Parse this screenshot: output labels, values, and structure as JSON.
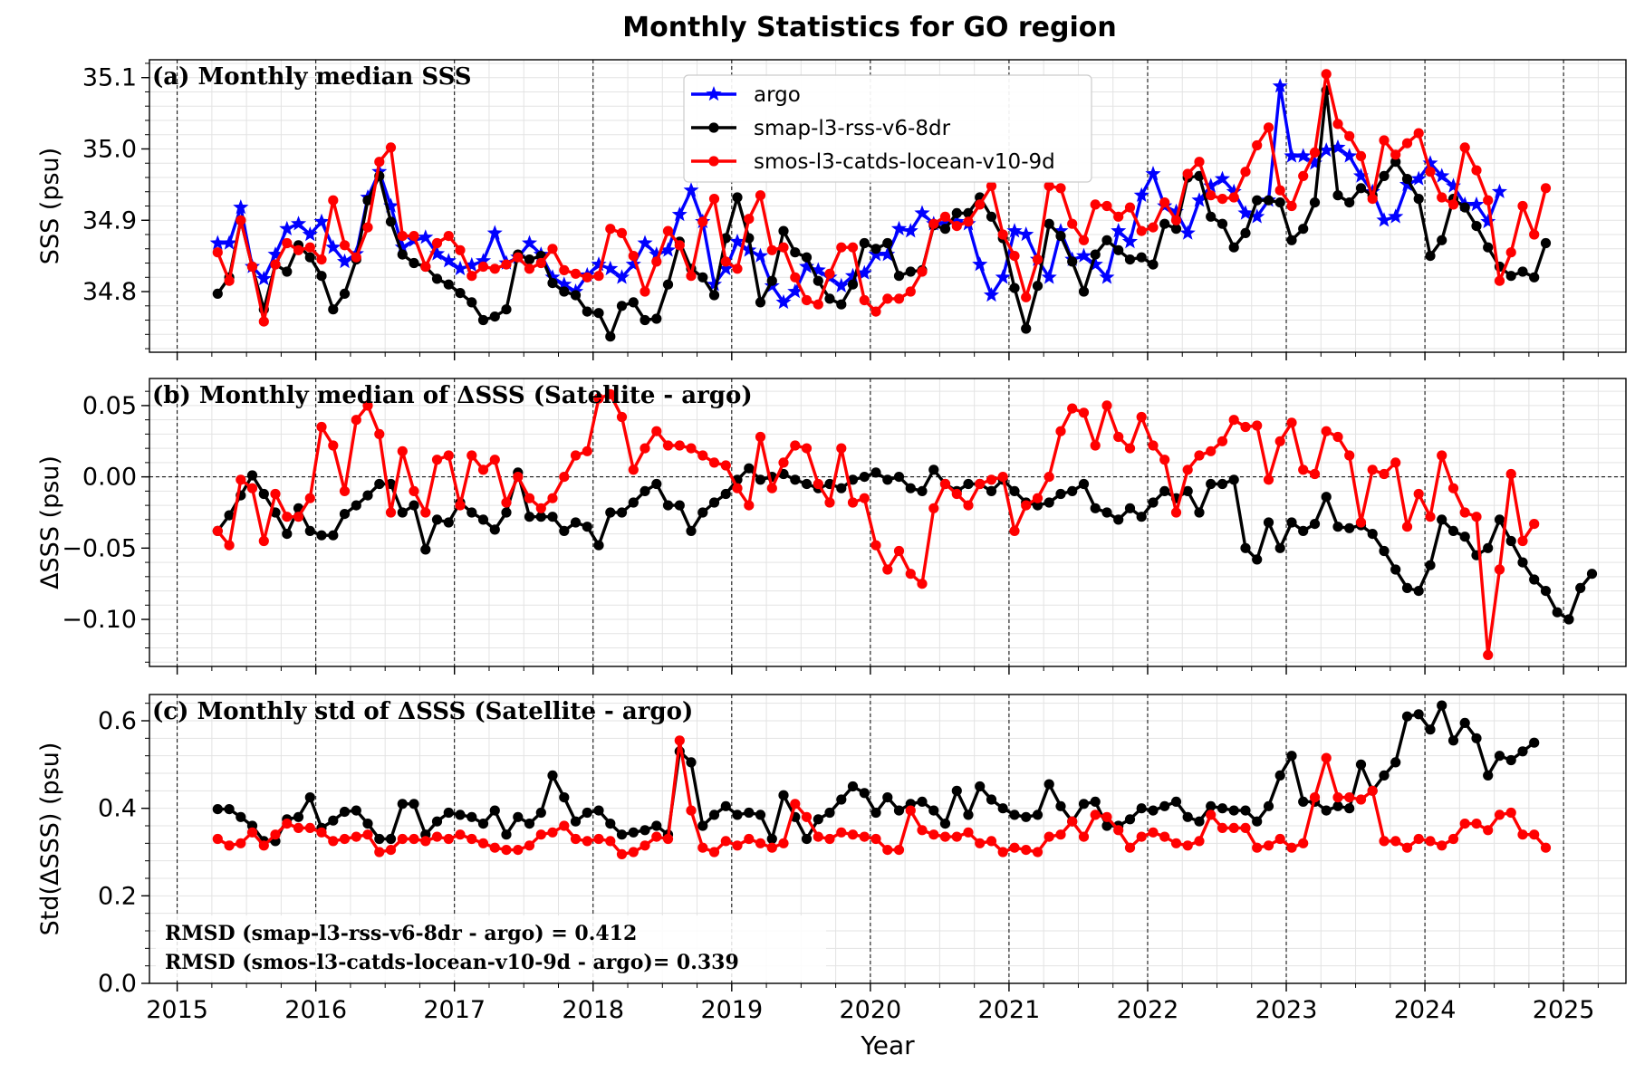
{
  "figure": {
    "title": "Monthly Statistics for GO region"
  },
  "colors": {
    "argo": "#0000ff",
    "smap": "#000000",
    "smos": "#ff0000"
  },
  "legend": {
    "placement": "upper-center of panel (a)",
    "entries": [
      {
        "label": "argo",
        "marker": "star",
        "color": "#0000ff"
      },
      {
        "label": "smap-l3-rss-v6-8dr",
        "marker": "circle",
        "color": "#000000"
      },
      {
        "label": "smos-l3-catds-locean-v10-9d",
        "marker": "circle",
        "color": "#ff0000"
      }
    ]
  },
  "chart_data": [
    {
      "type": "line",
      "panel": "a",
      "title": "(a) Monthly median SSS",
      "xlabel": "",
      "ylabel": "SSS (psu)",
      "x_units": "decimal year",
      "xlim": [
        2014.8,
        2025.45
      ],
      "ylim": [
        34.715,
        35.125
      ],
      "yticks": [
        34.8,
        34.9,
        35.0,
        35.1
      ],
      "ytick_labels": [
        "34.8",
        "34.9",
        "35.0",
        "35.1"
      ],
      "grid": true,
      "x_start": 2015.292,
      "x_step": 0.0833,
      "series": [
        {
          "name": "argo",
          "color": "#0000ff",
          "marker": "star",
          "values": [
            34.868,
            34.868,
            34.918,
            34.835,
            34.818,
            34.852,
            34.888,
            34.895,
            34.88,
            34.898,
            34.862,
            34.842,
            34.853,
            34.932,
            34.968,
            34.92,
            34.862,
            34.872,
            34.876,
            34.853,
            34.843,
            34.832,
            34.837,
            34.843,
            34.882,
            34.84,
            34.848,
            34.868,
            34.852,
            34.82,
            34.81,
            34.8,
            34.823,
            34.838,
            34.832,
            34.82,
            34.838,
            34.868,
            34.852,
            34.858,
            34.908,
            34.942,
            34.898,
            34.81,
            34.832,
            34.87,
            34.858,
            34.85,
            34.808,
            34.785,
            34.8,
            34.835,
            34.83,
            34.82,
            34.808,
            34.822,
            34.826,
            34.852,
            34.852,
            34.888,
            34.885,
            34.91,
            34.895,
            34.895,
            34.898,
            34.895,
            34.838,
            34.795,
            34.82,
            34.885,
            34.88,
            34.845,
            34.82,
            34.885,
            34.845,
            34.85,
            34.838,
            34.82,
            34.885,
            34.87,
            34.935,
            34.965,
            34.92,
            34.912,
            34.882,
            34.928,
            34.948,
            34.958,
            34.94,
            34.91,
            34.905,
            34.928,
            35.088,
            34.99,
            34.99,
            34.98,
            34.998,
            35.002,
            34.99,
            34.962,
            34.94,
            34.9,
            34.905,
            34.95,
            34.958,
            34.98,
            34.962,
            34.948,
            34.922,
            34.922,
            34.898,
            34.94
          ]
        },
        {
          "name": "smap-l3-rss-v6-8dr",
          "color": "#000000",
          "marker": "circle",
          "values": [
            34.797,
            34.82,
            34.9,
            34.835,
            34.775,
            34.838,
            34.828,
            34.865,
            34.848,
            34.822,
            34.775,
            34.797,
            34.845,
            34.928,
            34.962,
            34.898,
            34.852,
            34.84,
            34.835,
            34.818,
            34.81,
            34.798,
            34.785,
            34.76,
            34.765,
            34.775,
            34.852,
            34.845,
            34.85,
            34.812,
            34.8,
            34.795,
            34.772,
            34.77,
            34.737,
            34.78,
            34.785,
            34.76,
            34.762,
            34.81,
            34.87,
            34.832,
            34.82,
            34.795,
            34.875,
            34.932,
            34.875,
            34.785,
            34.815,
            34.885,
            34.855,
            34.848,
            34.815,
            34.79,
            34.782,
            34.81,
            34.868,
            34.86,
            34.868,
            34.822,
            34.828,
            34.83,
            34.893,
            34.888,
            34.91,
            34.91,
            34.932,
            34.905,
            34.875,
            34.805,
            34.748,
            34.808,
            34.895,
            34.878,
            34.842,
            34.8,
            34.852,
            34.872,
            34.858,
            34.845,
            34.848,
            34.838,
            34.895,
            34.888,
            34.96,
            34.962,
            34.905,
            34.895,
            34.862,
            34.882,
            34.928,
            34.928,
            34.925,
            34.872,
            34.888,
            34.925,
            35.082,
            34.935,
            34.925,
            34.945,
            34.935,
            34.962,
            34.982,
            34.958,
            34.93,
            34.85,
            34.872,
            34.93,
            34.918,
            34.892,
            34.862,
            34.835,
            34.822,
            34.828,
            34.82,
            34.868
          ]
        },
        {
          "name": "smos-l3-catds-locean-v10-9d",
          "color": "#ff0000",
          "marker": "circle",
          "values": [
            34.855,
            34.815,
            34.9,
            34.835,
            34.758,
            34.838,
            34.868,
            34.858,
            34.862,
            34.845,
            34.928,
            34.865,
            34.848,
            34.89,
            34.982,
            35.002,
            34.878,
            34.878,
            34.835,
            34.868,
            34.878,
            34.858,
            34.822,
            34.835,
            34.832,
            34.838,
            34.848,
            34.832,
            34.84,
            34.86,
            34.83,
            34.825,
            34.82,
            34.822,
            34.888,
            34.882,
            34.85,
            34.8,
            34.842,
            34.885,
            34.865,
            34.822,
            34.898,
            34.93,
            34.842,
            34.832,
            34.902,
            34.935,
            34.858,
            34.862,
            34.82,
            34.788,
            34.782,
            34.825,
            34.862,
            34.862,
            34.788,
            34.772,
            34.79,
            34.79,
            34.8,
            34.828,
            34.895,
            34.905,
            34.892,
            34.898,
            34.922,
            34.948,
            34.88,
            34.85,
            34.792,
            34.845,
            34.948,
            34.945,
            34.895,
            34.872,
            34.922,
            34.92,
            34.905,
            34.918,
            34.885,
            34.89,
            34.925,
            34.9,
            34.965,
            34.982,
            34.935,
            34.93,
            34.932,
            34.968,
            35.005,
            35.03,
            34.942,
            34.92,
            34.962,
            34.995,
            35.105,
            35.035,
            35.018,
            34.99,
            34.93,
            35.012,
            34.992,
            35.008,
            35.022,
            34.968,
            34.932,
            34.922,
            35.002,
            34.97,
            34.928,
            34.815,
            34.855,
            34.92,
            34.88,
            34.945
          ]
        }
      ]
    },
    {
      "type": "line",
      "panel": "b",
      "title": "(b) Monthly median of ΔSSS (Satellite - argo)",
      "xlabel": "",
      "ylabel": "ΔSSS (psu)",
      "x_units": "decimal year",
      "xlim": [
        2014.8,
        2025.45
      ],
      "ylim": [
        -0.133,
        0.069
      ],
      "yticks": [
        0.05,
        0.0,
        -0.05,
        -0.1
      ],
      "ytick_labels": [
        "0.05",
        "0.00",
        "−0.05",
        "−0.10"
      ],
      "reference_line": 0.0,
      "grid": true,
      "x_start": 2015.292,
      "x_step": 0.0833,
      "series": [
        {
          "name": "smap-l3-rss-v6-8dr",
          "color": "#000000",
          "marker": "circle",
          "values": [
            -0.038,
            -0.027,
            -0.013,
            0.001,
            -0.012,
            -0.025,
            -0.04,
            -0.022,
            -0.038,
            -0.041,
            -0.041,
            -0.026,
            -0.02,
            -0.013,
            -0.005,
            -0.005,
            -0.025,
            -0.02,
            -0.051,
            -0.03,
            -0.032,
            -0.018,
            -0.025,
            -0.03,
            -0.037,
            -0.025,
            0.003,
            -0.028,
            -0.028,
            -0.028,
            -0.038,
            -0.032,
            -0.035,
            -0.048,
            -0.025,
            -0.025,
            -0.018,
            -0.01,
            -0.005,
            -0.02,
            -0.02,
            -0.038,
            -0.025,
            -0.018,
            -0.012,
            -0.002,
            0.006,
            -0.002,
            0.0,
            0.002,
            -0.002,
            -0.005,
            -0.008,
            -0.005,
            -0.008,
            -0.002,
            0.0,
            0.003,
            -0.002,
            0.0,
            -0.008,
            -0.01,
            0.005,
            -0.005,
            -0.01,
            -0.005,
            -0.005,
            -0.01,
            -0.002,
            -0.01,
            -0.018,
            -0.02,
            -0.018,
            -0.012,
            -0.01,
            -0.005,
            -0.022,
            -0.025,
            -0.03,
            -0.022,
            -0.028,
            -0.018,
            -0.01,
            -0.015,
            -0.01,
            -0.025,
            -0.005,
            -0.005,
            -0.002,
            -0.05,
            -0.058,
            -0.032,
            -0.05,
            -0.032,
            -0.038,
            -0.033,
            -0.014,
            -0.035,
            -0.036,
            -0.034,
            -0.04,
            -0.052,
            -0.065,
            -0.078,
            -0.08,
            -0.062,
            -0.03,
            -0.038,
            -0.042,
            -0.055,
            -0.05,
            -0.03,
            -0.045,
            -0.06,
            -0.072,
            -0.08,
            -0.095,
            -0.1,
            -0.078,
            -0.068
          ]
        },
        {
          "name": "smos-l3-catds-locean-v10-9d",
          "color": "#ff0000",
          "marker": "circle",
          "values": [
            -0.038,
            -0.048,
            -0.002,
            -0.008,
            -0.045,
            -0.012,
            -0.028,
            -0.028,
            -0.015,
            0.035,
            0.022,
            -0.01,
            0.04,
            0.05,
            0.03,
            -0.025,
            0.018,
            -0.01,
            -0.025,
            0.012,
            0.015,
            -0.02,
            0.015,
            0.005,
            0.012,
            -0.018,
            0.0,
            -0.015,
            -0.022,
            -0.015,
            0.0,
            0.015,
            0.018,
            0.055,
            0.058,
            0.042,
            0.005,
            0.02,
            0.032,
            0.022,
            0.022,
            0.02,
            0.015,
            0.01,
            0.008,
            -0.008,
            -0.02,
            0.028,
            -0.008,
            0.01,
            0.022,
            0.02,
            -0.005,
            -0.018,
            0.02,
            -0.018,
            -0.015,
            -0.048,
            -0.065,
            -0.052,
            -0.068,
            -0.075,
            -0.022,
            -0.005,
            -0.012,
            -0.02,
            -0.005,
            -0.002,
            0.0,
            -0.038,
            -0.02,
            -0.015,
            0.0,
            0.032,
            0.048,
            0.045,
            0.022,
            0.05,
            0.028,
            0.02,
            0.042,
            0.022,
            0.012,
            -0.025,
            0.005,
            0.015,
            0.018,
            0.025,
            0.04,
            0.035,
            0.036,
            -0.002,
            0.025,
            0.038,
            0.005,
            0.002,
            0.032,
            0.028,
            0.015,
            -0.032,
            0.005,
            0.002,
            0.01,
            -0.035,
            -0.012,
            -0.028,
            0.015,
            -0.008,
            -0.025,
            -0.028,
            -0.125,
            -0.065,
            0.002,
            -0.045,
            -0.033
          ]
        }
      ]
    },
    {
      "type": "line",
      "panel": "c",
      "title": "(c) Monthly std of ΔSSS (Satellite - argo)",
      "xlabel": "Year",
      "ylabel": "Std(ΔSSS) (psu)",
      "x_units": "decimal year",
      "xlim": [
        2014.8,
        2025.45
      ],
      "xticks": [
        2015,
        2016,
        2017,
        2018,
        2019,
        2020,
        2021,
        2022,
        2023,
        2024,
        2025
      ],
      "xtick_labels": [
        "2015",
        "2016",
        "2017",
        "2018",
        "2019",
        "2020",
        "2021",
        "2022",
        "2023",
        "2024",
        "2025"
      ],
      "ylim": [
        0.0,
        0.66
      ],
      "yticks": [
        0.0,
        0.2,
        0.4,
        0.6
      ],
      "ytick_labels": [
        "0.0",
        "0.2",
        "0.4",
        "0.6"
      ],
      "grid": true,
      "x_start": 2015.292,
      "x_step": 0.0833,
      "annotations": [
        "RMSD (smap-l3-rss-v6-8dr - argo) = 0.412",
        "RMSD (smos-l3-catds-locean-v10-9d - argo)= 0.339"
      ],
      "series": [
        {
          "name": "smap-l3-rss-v6-8dr",
          "color": "#000000",
          "marker": "circle",
          "values": [
            0.398,
            0.398,
            0.38,
            0.36,
            0.325,
            0.325,
            0.375,
            0.38,
            0.425,
            0.355,
            0.372,
            0.392,
            0.395,
            0.365,
            0.33,
            0.33,
            0.41,
            0.41,
            0.34,
            0.37,
            0.39,
            0.385,
            0.38,
            0.365,
            0.395,
            0.34,
            0.38,
            0.365,
            0.39,
            0.475,
            0.425,
            0.37,
            0.39,
            0.395,
            0.365,
            0.34,
            0.345,
            0.35,
            0.36,
            0.34,
            0.53,
            0.505,
            0.36,
            0.385,
            0.405,
            0.385,
            0.39,
            0.385,
            0.33,
            0.43,
            0.38,
            0.33,
            0.375,
            0.39,
            0.42,
            0.45,
            0.435,
            0.39,
            0.425,
            0.395,
            0.41,
            0.415,
            0.395,
            0.365,
            0.44,
            0.385,
            0.45,
            0.42,
            0.4,
            0.385,
            0.38,
            0.385,
            0.455,
            0.405,
            0.37,
            0.41,
            0.415,
            0.36,
            0.36,
            0.375,
            0.4,
            0.395,
            0.405,
            0.415,
            0.38,
            0.37,
            0.405,
            0.4,
            0.395,
            0.395,
            0.37,
            0.405,
            0.475,
            0.52,
            0.415,
            0.415,
            0.395,
            0.405,
            0.4,
            0.5,
            0.44,
            0.475,
            0.505,
            0.61,
            0.615,
            0.58,
            0.635,
            0.555,
            0.595,
            0.56,
            0.475,
            0.52,
            0.51,
            0.53,
            0.55
          ]
        },
        {
          "name": "smos-l3-catds-locean-v10-9d",
          "color": "#ff0000",
          "marker": "circle",
          "values": [
            0.33,
            0.315,
            0.32,
            0.345,
            0.315,
            0.34,
            0.365,
            0.355,
            0.355,
            0.345,
            0.325,
            0.33,
            0.335,
            0.34,
            0.3,
            0.305,
            0.33,
            0.33,
            0.325,
            0.335,
            0.33,
            0.34,
            0.33,
            0.32,
            0.31,
            0.305,
            0.305,
            0.315,
            0.34,
            0.345,
            0.36,
            0.33,
            0.325,
            0.33,
            0.325,
            0.295,
            0.3,
            0.315,
            0.335,
            0.33,
            0.555,
            0.395,
            0.31,
            0.3,
            0.325,
            0.315,
            0.33,
            0.32,
            0.31,
            0.32,
            0.41,
            0.38,
            0.335,
            0.33,
            0.345,
            0.34,
            0.335,
            0.33,
            0.305,
            0.305,
            0.395,
            0.35,
            0.34,
            0.335,
            0.335,
            0.345,
            0.32,
            0.325,
            0.3,
            0.31,
            0.305,
            0.3,
            0.335,
            0.34,
            0.37,
            0.335,
            0.385,
            0.38,
            0.35,
            0.31,
            0.335,
            0.345,
            0.335,
            0.32,
            0.315,
            0.325,
            0.385,
            0.355,
            0.355,
            0.355,
            0.31,
            0.315,
            0.33,
            0.31,
            0.32,
            0.425,
            0.515,
            0.425,
            0.425,
            0.42,
            0.44,
            0.325,
            0.325,
            0.31,
            0.33,
            0.325,
            0.315,
            0.33,
            0.365,
            0.365,
            0.35,
            0.385,
            0.39,
            0.34,
            0.34,
            0.31
          ]
        }
      ]
    }
  ]
}
